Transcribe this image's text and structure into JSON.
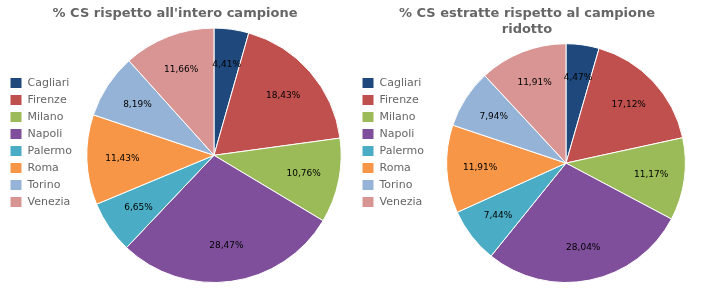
{
  "chart_data": [
    {
      "type": "pie",
      "title": "% CS rispetto all'intero campione",
      "categories": [
        "Cagliari",
        "Firenze",
        "Milano",
        "Napoli",
        "Palermo",
        "Roma",
        "Torino",
        "Venezia"
      ],
      "values": [
        4.41,
        18.43,
        10.76,
        28.47,
        6.65,
        11.43,
        8.19,
        11.66
      ],
      "value_labels": [
        "4,41%",
        "18,43%",
        "10,76%",
        "28,47%",
        "6,65%",
        "11,43%",
        "8,19%",
        "11,66%"
      ],
      "colors": [
        "#1F497D",
        "#C0504D",
        "#9BBB59",
        "#7F4F9C",
        "#4BACC6",
        "#F79646",
        "#95B3D7",
        "#D99594"
      ],
      "data_labels": true,
      "legend": "left"
    },
    {
      "type": "pie",
      "title": "% CS estratte rispetto al campione\nridotto",
      "categories": [
        "Cagliari",
        "Firenze",
        "Milano",
        "Napoli",
        "Palermo",
        "Roma",
        "Torino",
        "Venezia"
      ],
      "values": [
        4.47,
        17.12,
        11.17,
        28.04,
        7.44,
        11.91,
        7.94,
        11.91
      ],
      "value_labels": [
        "4,47%",
        "17,12%",
        "11,17%",
        "28,04%",
        "7,44%",
        "11,91%",
        "7,94%",
        "11,91%"
      ],
      "colors": [
        "#1F497D",
        "#C0504D",
        "#9BBB59",
        "#7F4F9C",
        "#4BACC6",
        "#F79646",
        "#95B3D7",
        "#D99594"
      ],
      "data_labels": true,
      "legend": "left"
    }
  ]
}
